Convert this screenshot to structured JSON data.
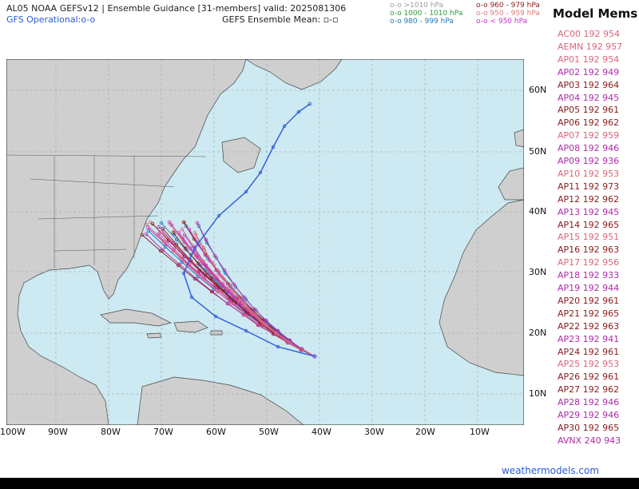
{
  "header": {
    "title": "AL05 NOAA GEFSv12 | Ensemble Guidance [31-members] valid: 2025081306",
    "gfs_operational": "GFS Operational:o-o",
    "ensemble_mean": "GEFS Ensemble Mean: ▫-▫"
  },
  "pressure_legend": [
    {
      "label": "o-o >1010 hPa",
      "color": "#9aa0a6"
    },
    {
      "label": "o-o 1000 - 1010 hPa",
      "color": "#2e9a3a"
    },
    {
      "label": "o-o 980 - 999 hPa",
      "color": "#1f77b4"
    },
    {
      "label": "o-o 960 - 979 hPa",
      "color": "#8b1a1a"
    },
    {
      "label": "o-o 950 - 959 hPa",
      "color": "#e07878"
    },
    {
      "label": "o-o < 950 hPa",
      "color": "#cc33cc"
    }
  ],
  "members": {
    "title": "Model Mems",
    "items": [
      {
        "label": "AC00 192 954",
        "color": "#d9667a"
      },
      {
        "label": "AEMN 192 957",
        "color": "#d9667a"
      },
      {
        "label": "AP01 192 954",
        "color": "#d9667a"
      },
      {
        "label": "AP02 192 949",
        "color": "#b02aa8"
      },
      {
        "label": "AP03 192 964",
        "color": "#8b1a1a"
      },
      {
        "label": "AP04 192 945",
        "color": "#b02aa8"
      },
      {
        "label": "AP05 192 961",
        "color": "#8b1a1a"
      },
      {
        "label": "AP06 192 962",
        "color": "#8b1a1a"
      },
      {
        "label": "AP07 192 959",
        "color": "#d9667a"
      },
      {
        "label": "AP08 192 946",
        "color": "#b02aa8"
      },
      {
        "label": "AP09 192 936",
        "color": "#b02aa8"
      },
      {
        "label": "AP10 192 953",
        "color": "#d9667a"
      },
      {
        "label": "AP11 192 973",
        "color": "#8b1a1a"
      },
      {
        "label": "AP12 192 962",
        "color": "#8b1a1a"
      },
      {
        "label": "AP13 192 945",
        "color": "#b02aa8"
      },
      {
        "label": "AP14 192 965",
        "color": "#8b1a1a"
      },
      {
        "label": "AP15 192 951",
        "color": "#d9667a"
      },
      {
        "label": "AP16 192 963",
        "color": "#8b1a1a"
      },
      {
        "label": "AP17 192 956",
        "color": "#d9667a"
      },
      {
        "label": "AP18 192 933",
        "color": "#b02aa8"
      },
      {
        "label": "AP19 192 944",
        "color": "#b02aa8"
      },
      {
        "label": "AP20 192 961",
        "color": "#8b1a1a"
      },
      {
        "label": "AP21 192 965",
        "color": "#8b1a1a"
      },
      {
        "label": "AP22 192 963",
        "color": "#8b1a1a"
      },
      {
        "label": "AP23 192 941",
        "color": "#b02aa8"
      },
      {
        "label": "AP24 192 961",
        "color": "#8b1a1a"
      },
      {
        "label": "AP25 192 953",
        "color": "#d9667a"
      },
      {
        "label": "AP26 192 961",
        "color": "#8b1a1a"
      },
      {
        "label": "AP27 192 962",
        "color": "#8b1a1a"
      },
      {
        "label": "AP28 192 946",
        "color": "#b02aa8"
      },
      {
        "label": "AP29 192 946",
        "color": "#b02aa8"
      },
      {
        "label": "AP30 192 965",
        "color": "#8b1a1a"
      },
      {
        "label": "AVNX 240 943",
        "color": "#b02aa8"
      }
    ]
  },
  "map": {
    "lon_labels": [
      "100W",
      "90W",
      "80W",
      "70W",
      "60W",
      "50W",
      "40W",
      "30W",
      "20W",
      "10W"
    ],
    "lat_labels": [
      "60N",
      "50N",
      "40N",
      "30N",
      "20N",
      "10N"
    ],
    "ocean_color": "#cde9f2",
    "land_color": "#cfcfcf"
  },
  "credit": "weathermodels.com"
}
